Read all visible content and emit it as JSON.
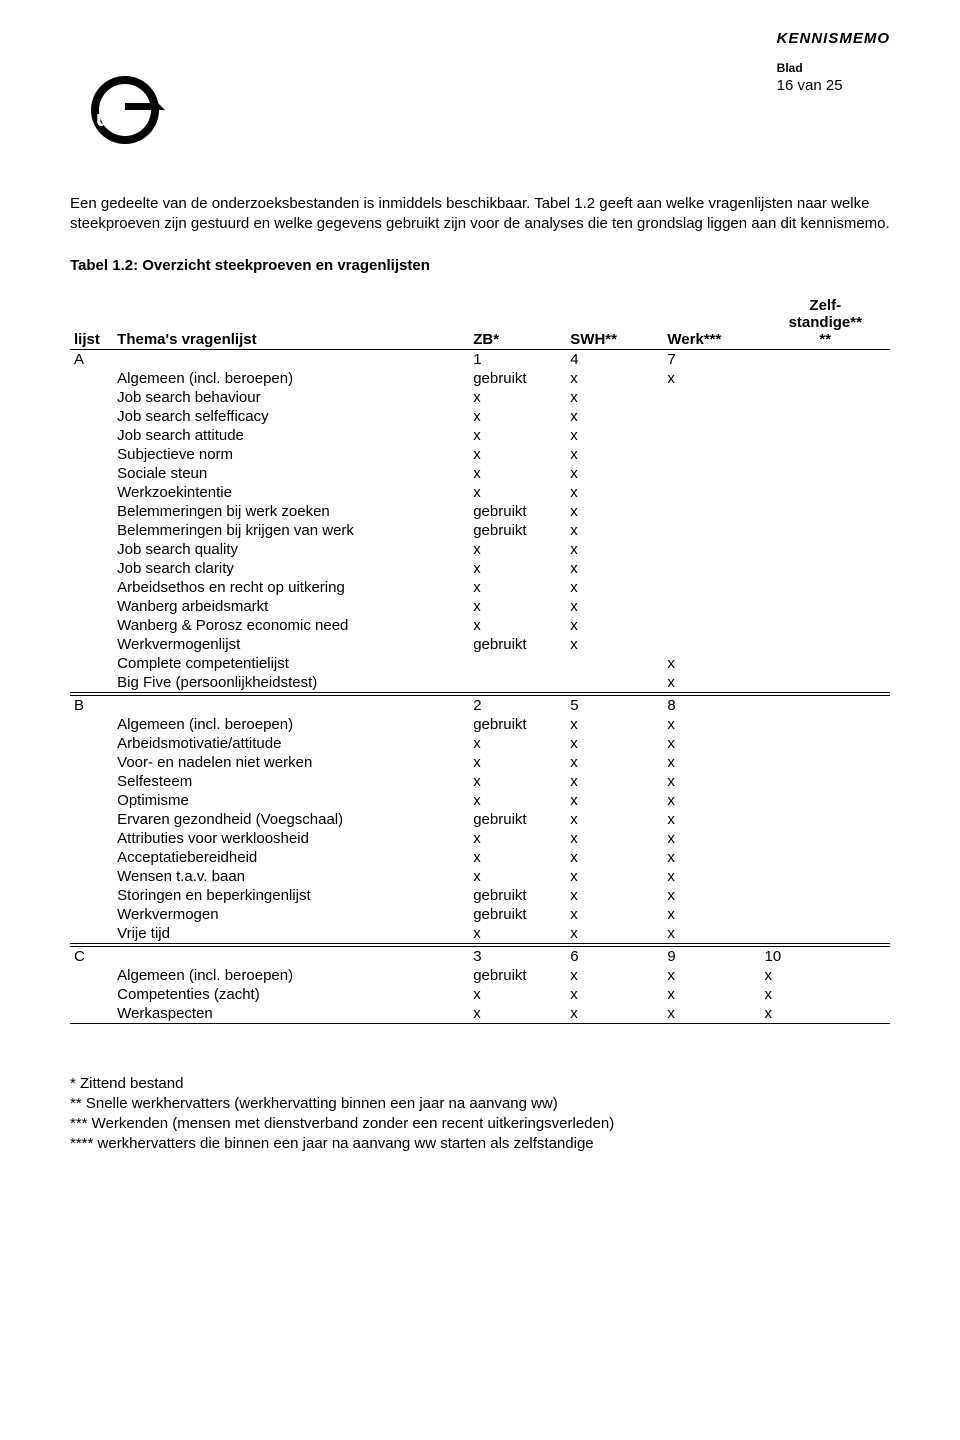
{
  "header": {
    "docType": "KENNISMEMO",
    "bladLabel": "Blad",
    "pageCounter": "16 van 25"
  },
  "intro": "Een gedeelte van de onderzoeksbestanden is inmiddels beschikbaar. Tabel 1.2 geeft aan welke vragenlijsten naar welke steekproeven zijn gestuurd en welke gegevens gebruikt zijn voor de analyses die ten grondslag liggen aan dit kennismemo.",
  "tableTitle": "Tabel 1.2: Overzicht steekproeven en vragenlijsten",
  "columns": {
    "lijst": "lijst",
    "thema": "Thema's vragenlijst",
    "zb": "ZB*",
    "swh": "SWH**",
    "werk": "Werk***",
    "zelf1": "Zelf-",
    "zelf2": "standige**",
    "zelf3": "**"
  },
  "sections": [
    {
      "letter": "A",
      "nums": {
        "zb": "1",
        "swh": "4",
        "werk": "7",
        "zelf": ""
      },
      "rows": [
        {
          "thema": "Algemeen (incl. beroepen)",
          "zb": "gebruikt",
          "swh": "x",
          "werk": "x",
          "zelf": ""
        },
        {
          "thema": "Job search behaviour",
          "zb": "x",
          "swh": "x",
          "werk": "",
          "zelf": ""
        },
        {
          "thema": "Job search selfefficacy",
          "zb": "x",
          "swh": "x",
          "werk": "",
          "zelf": ""
        },
        {
          "thema": "Job search attitude",
          "zb": "x",
          "swh": "x",
          "werk": "",
          "zelf": ""
        },
        {
          "thema": "Subjectieve norm",
          "zb": "x",
          "swh": "x",
          "werk": "",
          "zelf": ""
        },
        {
          "thema": "Sociale steun",
          "zb": "x",
          "swh": "x",
          "werk": "",
          "zelf": ""
        },
        {
          "thema": "Werkzoekintentie",
          "zb": "x",
          "swh": "x",
          "werk": "",
          "zelf": ""
        },
        {
          "thema": "Belemmeringen bij werk zoeken",
          "zb": "gebruikt",
          "swh": "x",
          "werk": "",
          "zelf": ""
        },
        {
          "thema": "Belemmeringen bij krijgen van werk",
          "zb": "gebruikt",
          "swh": "x",
          "werk": "",
          "zelf": ""
        },
        {
          "thema": "Job search quality",
          "zb": "x",
          "swh": "x",
          "werk": "",
          "zelf": ""
        },
        {
          "thema": "Job search clarity",
          "zb": "x",
          "swh": "x",
          "werk": "",
          "zelf": ""
        },
        {
          "thema": "Arbeidsethos en recht op uitkering",
          "zb": "x",
          "swh": "x",
          "werk": "",
          "zelf": ""
        },
        {
          "thema": "Wanberg arbeidsmarkt",
          "zb": "x",
          "swh": "x",
          "werk": "",
          "zelf": ""
        },
        {
          "thema": "Wanberg & Porosz economic need",
          "zb": "x",
          "swh": "x",
          "werk": "",
          "zelf": ""
        },
        {
          "thema": "Werkvermogenlijst",
          "zb": "gebruikt",
          "swh": "x",
          "werk": "",
          "zelf": ""
        },
        {
          "thema": "Complete competentielijst",
          "zb": "",
          "swh": "",
          "werk": "x",
          "zelf": ""
        },
        {
          "thema": "Big Five (persoonlijkheidstest)",
          "zb": "",
          "swh": "",
          "werk": "x",
          "zelf": ""
        }
      ]
    },
    {
      "letter": "B",
      "nums": {
        "zb": "2",
        "swh": "5",
        "werk": "8",
        "zelf": ""
      },
      "rows": [
        {
          "thema": "Algemeen (incl. beroepen)",
          "zb": "gebruikt",
          "swh": "x",
          "werk": "x",
          "zelf": ""
        },
        {
          "thema": "Arbeidsmotivatie/attitude",
          "zb": "x",
          "swh": "x",
          "werk": "x",
          "zelf": ""
        },
        {
          "thema": "Voor- en nadelen niet werken",
          "zb": "x",
          "swh": "x",
          "werk": "x",
          "zelf": ""
        },
        {
          "thema": "Selfesteem",
          "zb": "x",
          "swh": "x",
          "werk": "x",
          "zelf": ""
        },
        {
          "thema": "Optimisme",
          "zb": "x",
          "swh": "x",
          "werk": "x",
          "zelf": ""
        },
        {
          "thema": "Ervaren gezondheid (Voegschaal)",
          "zb": "gebruikt",
          "swh": "x",
          "werk": "x",
          "zelf": ""
        },
        {
          "thema": "Attributies voor werkloosheid",
          "zb": "x",
          "swh": "x",
          "werk": "x",
          "zelf": ""
        },
        {
          "thema": "Acceptatiebereidheid",
          "zb": "x",
          "swh": "x",
          "werk": "x",
          "zelf": ""
        },
        {
          "thema": "Wensen t.a.v. baan",
          "zb": "x",
          "swh": "x",
          "werk": "x",
          "zelf": ""
        },
        {
          "thema": "Storingen en beperkingenlijst",
          "zb": "gebruikt",
          "swh": "x",
          "werk": "x",
          "zelf": ""
        },
        {
          "thema": "Werkvermogen",
          "zb": "gebruikt",
          "swh": "x",
          "werk": "x",
          "zelf": ""
        },
        {
          "thema": "Vrije tijd",
          "zb": "x",
          "swh": "x",
          "werk": "x",
          "zelf": ""
        }
      ]
    },
    {
      "letter": "C",
      "nums": {
        "zb": "3",
        "swh": "6",
        "werk": "9",
        "zelf": "10"
      },
      "rows": [
        {
          "thema": "Algemeen (incl. beroepen)",
          "zb": "gebruikt",
          "swh": "x",
          "werk": "x",
          "zelf": "x"
        },
        {
          "thema": "Competenties (zacht)",
          "zb": "x",
          "swh": "x",
          "werk": "x",
          "zelf": "x"
        },
        {
          "thema": "Werkaspecten",
          "zb": "x",
          "swh": "x",
          "werk": "x",
          "zelf": "x"
        }
      ]
    }
  ],
  "footnotes": [
    "* Zittend bestand",
    "** Snelle werkhervatters (werkhervatting binnen een jaar na aanvang ww)",
    "*** Werkenden (mensen met dienstverband zonder een recent uitkeringsverleden)",
    "**** werkhervatters die binnen een jaar na aanvang ww starten als zelfstandige"
  ],
  "style": {
    "textColor": "#000000",
    "background": "#ffffff",
    "fontSizePt": 11
  }
}
